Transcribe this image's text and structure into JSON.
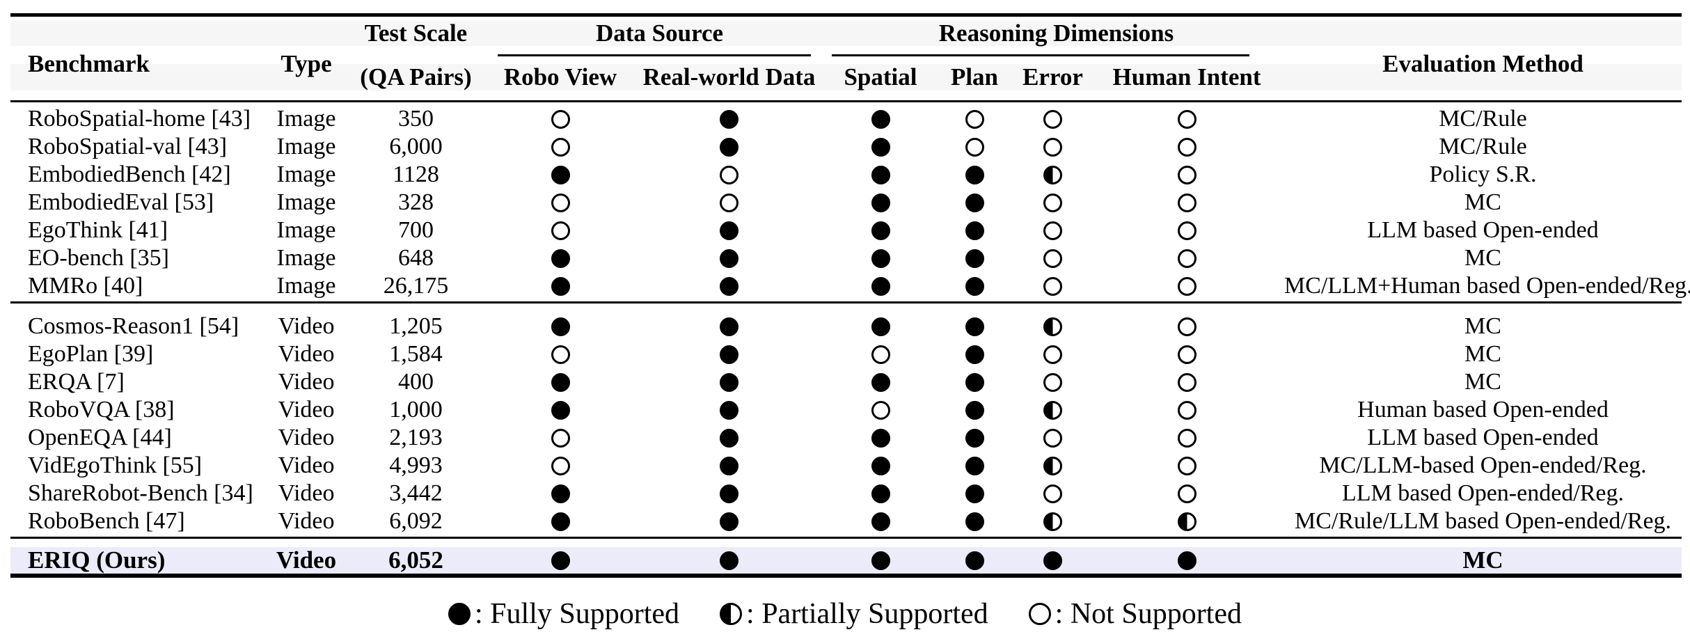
{
  "table": {
    "header": {
      "benchmark": "Benchmark",
      "type": "Type",
      "test_scale_line1": "Test Scale",
      "test_scale_line2": "(QA Pairs)",
      "data_source_group": "Data Source",
      "reasoning_group": "Reasoning Dimensions",
      "robo_view": "Robo View",
      "real_world_data": "Real-world Data",
      "spatial": "Spatial",
      "plan": "Plan",
      "error": "Error",
      "human_intent": "Human Intent",
      "evaluation_method": "Evaluation Method"
    },
    "mark_columns": [
      "robo_view",
      "real_world_data",
      "spatial",
      "plan",
      "error",
      "human_intent"
    ],
    "groups": [
      {
        "rows": [
          {
            "benchmark": "RoboSpatial-home [43]",
            "type": "Image",
            "qa_pairs": "350",
            "marks": [
              "none",
              "full",
              "full",
              "none",
              "none",
              "none"
            ],
            "evaluation": "MC/Rule"
          },
          {
            "benchmark": "RoboSpatial-val [43]",
            "type": "Image",
            "qa_pairs": "6,000",
            "marks": [
              "none",
              "full",
              "full",
              "none",
              "none",
              "none"
            ],
            "evaluation": "MC/Rule"
          },
          {
            "benchmark": "EmbodiedBench [42]",
            "type": "Image",
            "qa_pairs": "1128",
            "marks": [
              "full",
              "none",
              "full",
              "full",
              "half",
              "none"
            ],
            "evaluation": "Policy S.R."
          },
          {
            "benchmark": "EmbodiedEval [53]",
            "type": "Image",
            "qa_pairs": "328",
            "marks": [
              "none",
              "none",
              "full",
              "full",
              "none",
              "none"
            ],
            "evaluation": "MC"
          },
          {
            "benchmark": "EgoThink [41]",
            "type": "Image",
            "qa_pairs": "700",
            "marks": [
              "none",
              "full",
              "full",
              "full",
              "none",
              "none"
            ],
            "evaluation": "LLM based Open-ended"
          },
          {
            "benchmark": "EO-bench [35]",
            "type": "Image",
            "qa_pairs": "648",
            "marks": [
              "full",
              "full",
              "full",
              "full",
              "none",
              "none"
            ],
            "evaluation": "MC"
          },
          {
            "benchmark": "MMRo [40]",
            "type": "Image",
            "qa_pairs": "26,175",
            "marks": [
              "full",
              "full",
              "full",
              "full",
              "none",
              "none"
            ],
            "evaluation": "MC/LLM+Human based Open-ended/Reg."
          }
        ]
      },
      {
        "rows": [
          {
            "benchmark": "Cosmos-Reason1 [54]",
            "type": "Video",
            "qa_pairs": "1,205",
            "marks": [
              "full",
              "full",
              "full",
              "full",
              "half",
              "none"
            ],
            "evaluation": "MC"
          },
          {
            "benchmark": "EgoPlan [39]",
            "type": "Video",
            "qa_pairs": "1,584",
            "marks": [
              "none",
              "full",
              "none",
              "full",
              "none",
              "none"
            ],
            "evaluation": "MC"
          },
          {
            "benchmark": "ERQA [7]",
            "type": "Video",
            "qa_pairs": "400",
            "marks": [
              "full",
              "full",
              "full",
              "full",
              "none",
              "none"
            ],
            "evaluation": "MC"
          },
          {
            "benchmark": "RoboVQA [38]",
            "type": "Video",
            "qa_pairs": "1,000",
            "marks": [
              "full",
              "full",
              "none",
              "full",
              "half",
              "none"
            ],
            "evaluation": "Human based Open-ended"
          },
          {
            "benchmark": "OpenEQA [44]",
            "type": "Video",
            "qa_pairs": "2,193",
            "marks": [
              "none",
              "full",
              "full",
              "full",
              "none",
              "none"
            ],
            "evaluation": "LLM based Open-ended"
          },
          {
            "benchmark": "VidEgoThink [55]",
            "type": "Video",
            "qa_pairs": "4,993",
            "marks": [
              "none",
              "full",
              "full",
              "full",
              "half",
              "none"
            ],
            "evaluation": "MC/LLM-based Open-ended/Reg."
          },
          {
            "benchmark": "ShareRobot-Bench [34]",
            "type": "Video",
            "qa_pairs": "3,442",
            "marks": [
              "full",
              "full",
              "full",
              "full",
              "none",
              "none"
            ],
            "evaluation": "LLM based Open-ended/Reg."
          },
          {
            "benchmark": "RoboBench [47]",
            "type": "Video",
            "qa_pairs": "6,092",
            "marks": [
              "full",
              "full",
              "full",
              "full",
              "half",
              "half"
            ],
            "evaluation": "MC/Rule/LLM based Open-ended/Reg."
          }
        ]
      }
    ],
    "ours_row": {
      "benchmark": "ERIQ (Ours)",
      "type": "Video",
      "qa_pairs": "6,052",
      "marks": [
        "full",
        "full",
        "full",
        "full",
        "full",
        "full"
      ],
      "evaluation": "MC"
    }
  },
  "legend": {
    "items": [
      {
        "mark": "full",
        "label": ": Fully Supported"
      },
      {
        "mark": "half",
        "label": ": Partially Supported"
      },
      {
        "mark": "none",
        "label": ": Not Supported"
      }
    ]
  },
  "colors": {
    "header_band": "#f6f6f6",
    "ours_row_background": "#ebebfa",
    "rule": "#000000"
  }
}
